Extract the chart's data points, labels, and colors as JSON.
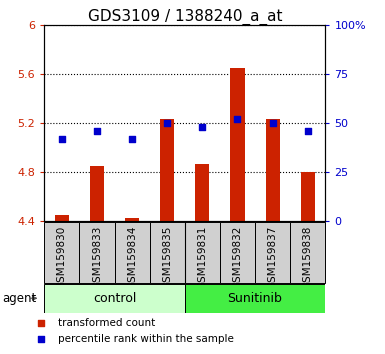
{
  "title": "GDS3109 / 1388240_a_at",
  "samples": [
    "GSM159830",
    "GSM159833",
    "GSM159834",
    "GSM159835",
    "GSM159831",
    "GSM159832",
    "GSM159837",
    "GSM159838"
  ],
  "transformed_count": [
    4.45,
    4.85,
    4.43,
    5.23,
    4.87,
    5.65,
    5.23,
    4.8
  ],
  "percentile_rank": [
    42,
    46,
    42,
    50,
    48,
    52,
    50,
    46
  ],
  "ylim_left": [
    4.4,
    6.0
  ],
  "ylim_right": [
    0,
    100
  ],
  "yticks_left": [
    4.4,
    4.8,
    5.2,
    5.6,
    6.0
  ],
  "ytick_labels_left": [
    "4.4",
    "4.8",
    "5.2",
    "5.6",
    "6"
  ],
  "yticks_right": [
    0,
    25,
    50,
    75,
    100
  ],
  "ytick_labels_right": [
    "0",
    "25",
    "50",
    "75",
    "100%"
  ],
  "bar_color": "#cc2200",
  "dot_color": "#0000cc",
  "bar_bottom": 4.4,
  "control_color": "#ccffcc",
  "sunitinib_color": "#44ee44",
  "xlabel_area_color": "#d0d0d0",
  "agent_label": "agent",
  "legend_items": [
    "transformed count",
    "percentile rank within the sample"
  ],
  "title_fontsize": 11,
  "tick_fontsize": 8,
  "label_fontsize": 7.5,
  "group_fontsize": 9,
  "legend_fontsize": 7.5
}
